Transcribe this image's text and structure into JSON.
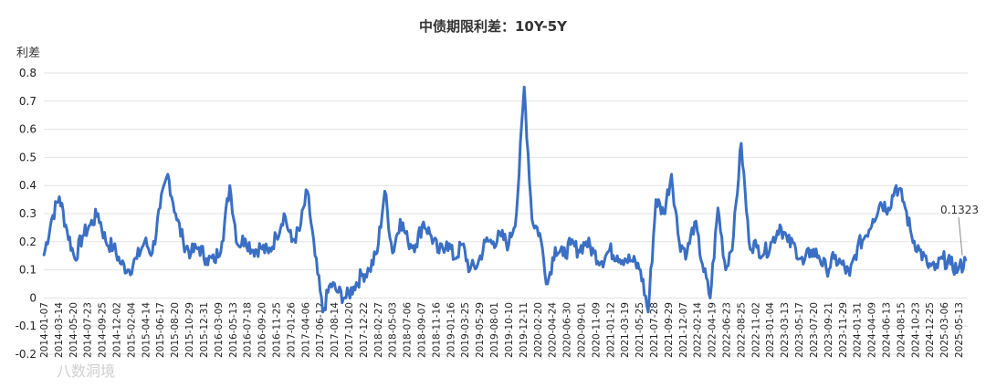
{
  "chart_data": {
    "type": "line",
    "title": "中债期限利差：10Y-5Y",
    "ylabel": "利差",
    "xlabel": "",
    "ylim": [
      -0.2,
      0.8
    ],
    "yticks": [
      "0.8",
      "0.7",
      "0.6",
      "0.5",
      "0.4",
      "0.3",
      "0.2",
      "0.1",
      "0",
      "-0.1",
      "-0.2"
    ],
    "grid": true,
    "x_tick_labels": [
      "2014-01-07",
      "2014-03-14",
      "2014-05-20",
      "2014-07-23",
      "2014-09-25",
      "2014-12-02",
      "2015-02-04",
      "2015-04-14",
      "2015-06-17",
      "2015-08-20",
      "2015-10-29",
      "2015-12-31",
      "2016-03-09",
      "2016-05-13",
      "2016-07-18",
      "2016-09-20",
      "2016-11-25",
      "2017-01-26",
      "2017-04-06",
      "2017-06-12",
      "2017-08-14",
      "2017-10-20",
      "2017-12-22",
      "2018-02-27",
      "2018-05-03",
      "2018-07-06",
      "2018-09-07",
      "2018-11-16",
      "2019-01-16",
      "2019-03-25",
      "2019-05-29",
      "2019-08-01",
      "2019-10-10",
      "2019-12-11",
      "2020-02-20",
      "2020-04-24",
      "2020-06-30",
      "2020-09-01",
      "2020-11-09",
      "2021-01-12",
      "2021-03-19",
      "2021-05-25",
      "2021-07-28",
      "2021-09-29",
      "2021-12-07",
      "2022-02-14",
      "2022-04-19",
      "2022-06-23",
      "2022-08-25",
      "2022-11-02",
      "2023-01-04",
      "2023-03-13",
      "2023-05-17",
      "2023-07-20",
      "2023-09-21",
      "2023-11-29",
      "2024-01-31",
      "2024-04-09",
      "2024-06-13",
      "2024-08-15",
      "2024-10-23",
      "2024-12-25",
      "2025-03-06",
      "2025-05-13"
    ],
    "series": [
      {
        "values": [
          0.15,
          0.28,
          0.36,
          0.24,
          0.14,
          0.22,
          0.26,
          0.3,
          0.2,
          0.18,
          0.12,
          0.1,
          0.14,
          0.2,
          0.16,
          0.32,
          0.44,
          0.3,
          0.2,
          0.16,
          0.18,
          0.14,
          0.13,
          0.2,
          0.4,
          0.19,
          0.21,
          0.17,
          0.18,
          0.16,
          0.22,
          0.3,
          0.2,
          0.24,
          0.38,
          0.15,
          -0.05,
          0.05,
          0.02,
          0.0,
          0.04,
          0.08,
          0.1,
          0.16,
          0.38,
          0.16,
          0.28,
          0.2,
          0.19,
          0.27,
          0.22,
          0.16,
          0.2,
          0.14,
          0.19,
          0.1,
          0.12,
          0.2,
          0.2,
          0.22,
          0.19,
          0.3,
          0.75,
          0.28,
          0.23,
          0.05,
          0.18,
          0.15,
          0.19,
          0.17,
          0.2,
          0.16,
          0.13,
          0.17,
          0.15,
          0.14,
          0.13,
          0.1,
          -0.05,
          0.35,
          0.3,
          0.44,
          0.2,
          0.16,
          0.27,
          0.12,
          0.0,
          0.32,
          0.1,
          0.22,
          0.55,
          0.2,
          0.18,
          0.16,
          0.2,
          0.26,
          0.2,
          0.18,
          0.12,
          0.17,
          0.15,
          0.1,
          0.14,
          0.12,
          0.08,
          0.18,
          0.22,
          0.28,
          0.34,
          0.32,
          0.4,
          0.34,
          0.22,
          0.17,
          0.12,
          0.1,
          0.14,
          0.12,
          0.1,
          0.1323
        ],
        "last_label": "0.1323"
      }
    ]
  },
  "watermark": "八数洞境"
}
